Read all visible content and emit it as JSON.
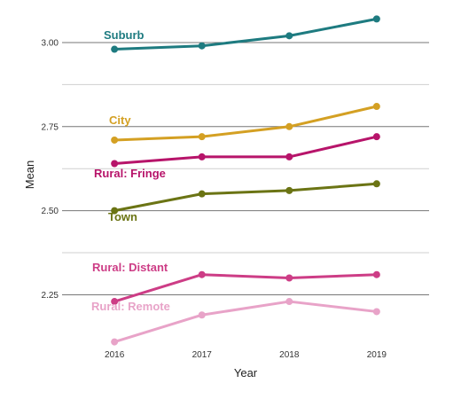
{
  "chart_data": {
    "type": "line",
    "xlabel": "Year",
    "ylabel": "Mean",
    "x": [
      2016,
      2017,
      2018,
      2019
    ],
    "x_ticks": [
      "2016",
      "2017",
      "2018",
      "2019"
    ],
    "xlim": [
      2015.4,
      2019.6
    ],
    "ylim": [
      2.13,
      3.1
    ],
    "y_ticks": [
      2.25,
      2.5,
      2.75,
      3.0
    ],
    "y_tick_labels": [
      "2.25",
      "2.50",
      "2.75",
      "3.00"
    ],
    "y_minor_ticks": [
      2.375,
      2.625,
      2.875
    ],
    "grid": true,
    "legend": "direct labels",
    "series": [
      {
        "name": "Suburb",
        "values": [
          2.98,
          2.99,
          3.02,
          3.07
        ],
        "color": "#1e7b80"
      },
      {
        "name": "City",
        "values": [
          2.71,
          2.72,
          2.75,
          2.81
        ],
        "color": "#d4a023"
      },
      {
        "name": "Rural: Fringe",
        "values": [
          2.64,
          2.66,
          2.66,
          2.72
        ],
        "color": "#b7146a"
      },
      {
        "name": "Town",
        "values": [
          2.5,
          2.55,
          2.56,
          2.58
        ],
        "color": "#6b7414"
      },
      {
        "name": "Rural: Distant",
        "values": [
          2.23,
          2.31,
          2.3,
          2.31
        ],
        "color": "#cd3d86"
      },
      {
        "name": "Rural: Remote",
        "values": [
          2.11,
          2.19,
          2.23,
          2.2
        ],
        "color": "#e8a3c8"
      }
    ]
  }
}
